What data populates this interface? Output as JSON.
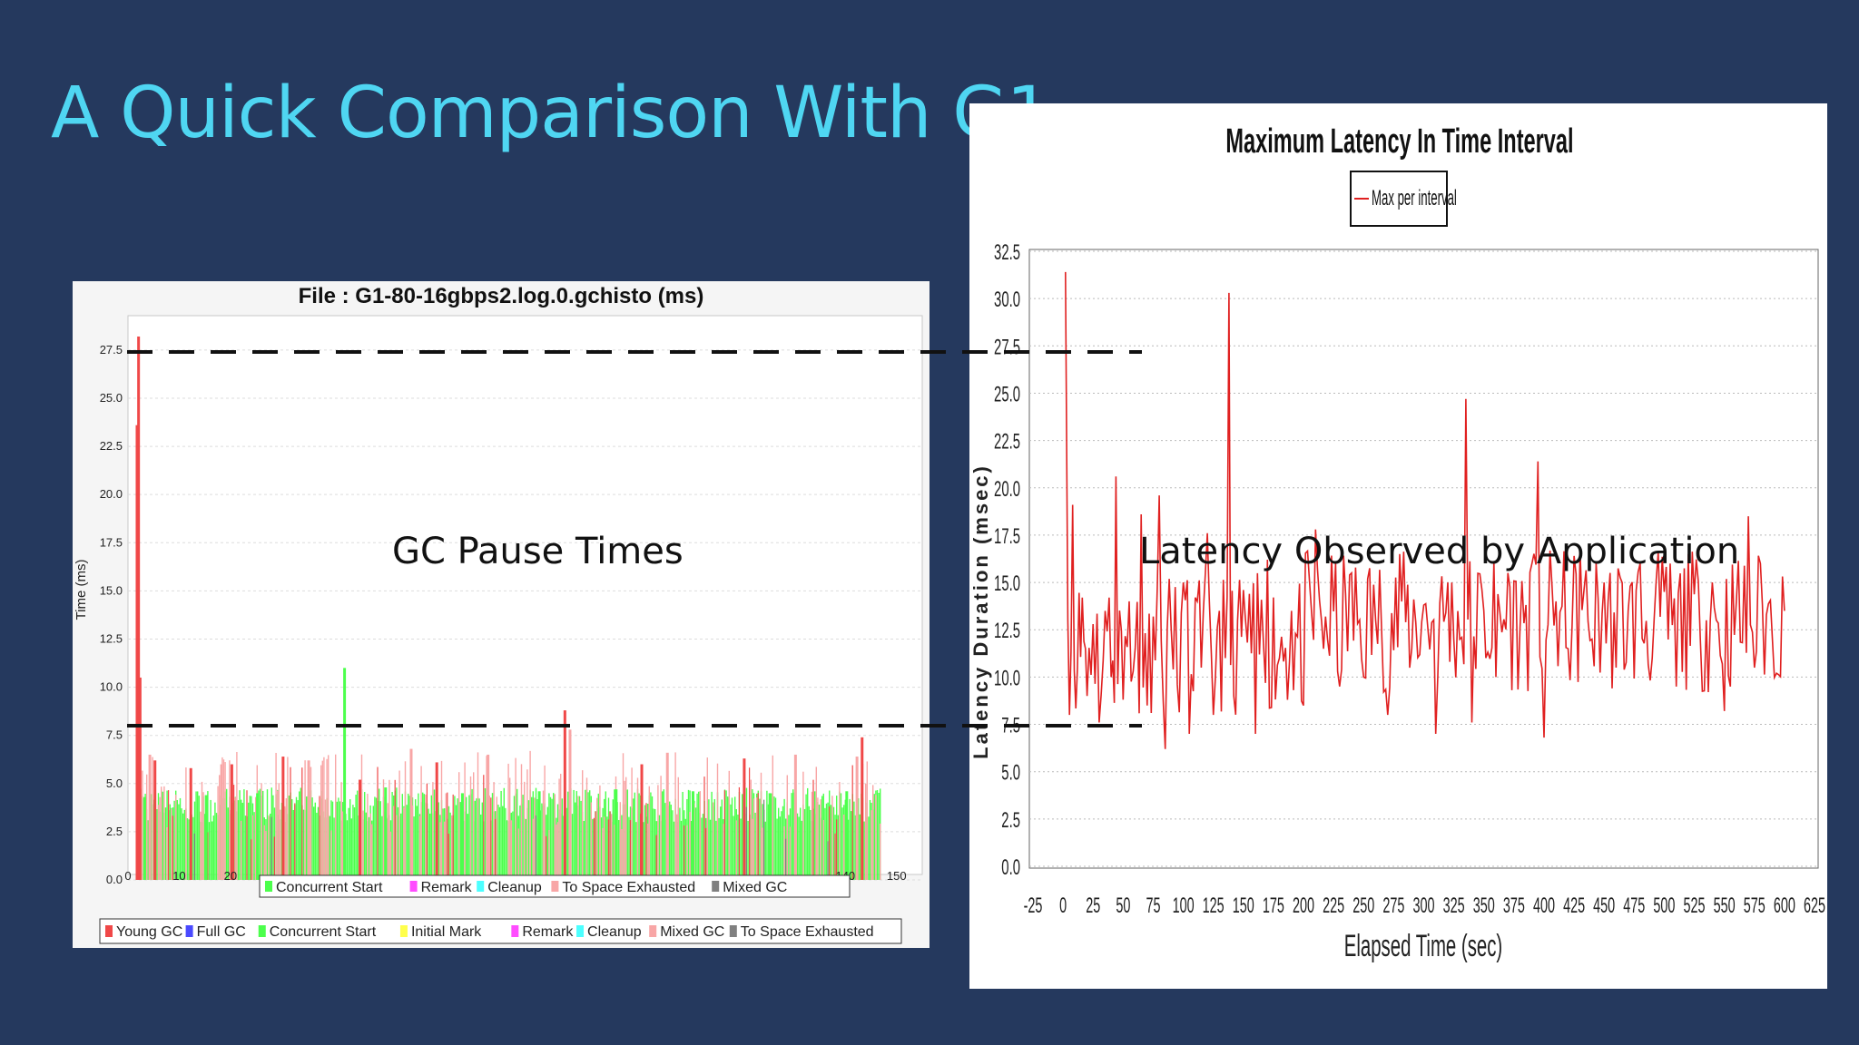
{
  "slide": {
    "title": "A Quick Comparison With G1",
    "gc_label": "GC Pause Times",
    "latency_label": "Latency Observed by Application"
  },
  "colors": {
    "background": "#25395e",
    "title": "#4fd6f2",
    "young_gc": "#f04848",
    "full_gc": "#4a4aff",
    "concurrent_start": "#4cff4c",
    "initial_mark": "#ffff4c",
    "remark": "#ff4cff",
    "cleanup": "#4cffff",
    "mixed_gc": "#f8a6a6",
    "to_space_exhausted": "#808080",
    "latency_line": "#e02020"
  },
  "chart_data": [
    {
      "type": "bar",
      "title": "File : G1-80-16gbps2.log.0.gchisto (ms)",
      "xlabel": "",
      "ylabel": "Time (ms)",
      "xlim": [
        0,
        155
      ],
      "ylim": [
        0,
        29
      ],
      "x_ticks": [
        "0",
        "10",
        "20",
        "140",
        "150"
      ],
      "y_ticks": [
        "0.0",
        "2.5",
        "5.0",
        "7.5",
        "10.0",
        "12.5",
        "15.0",
        "17.5",
        "20.0",
        "22.5",
        "25.0",
        "27.5"
      ],
      "grid": true,
      "inner_legend": [
        "Concurrent Start",
        "Remark",
        "Cleanup",
        "To Space Exhausted",
        "Mixed GC"
      ],
      "legend": [
        "Young GC",
        "Full GC",
        "Concurrent Start",
        "Initial Mark",
        "Remark",
        "Cleanup",
        "Mixed GC",
        "To Space Exhausted"
      ],
      "series": [
        {
          "name": "Young GC",
          "points": [
            [
              1.5,
              23.6
            ],
            [
              1.8,
              28.2
            ],
            [
              2.1,
              10.5
            ],
            [
              5,
              6.2
            ],
            [
              12,
              5.8
            ],
            [
              20,
              6.0
            ],
            [
              30,
              6.4
            ],
            [
              45,
              5.2
            ],
            [
              60,
              6.1
            ],
            [
              85,
              8.8
            ],
            [
              100,
              6.0
            ],
            [
              120,
              6.3
            ],
            [
              143,
              7.4
            ]
          ]
        },
        {
          "name": "Concurrent Start",
          "points": [
            [
              3,
              4.3
            ],
            [
              15,
              4.4
            ],
            [
              25,
              4.5
            ],
            [
              42,
              11.0
            ],
            [
              50,
              4.8
            ],
            [
              65,
              4.5
            ],
            [
              80,
              4.6
            ],
            [
              95,
              4.7
            ],
            [
              110,
              4.6
            ],
            [
              125,
              4.5
            ],
            [
              140,
              4.6
            ]
          ]
        },
        {
          "name": "Mixed GC",
          "points": [
            [
              4,
              6.5
            ],
            [
              18,
              6.0
            ],
            [
              35,
              6.2
            ],
            [
              55,
              6.8
            ],
            [
              70,
              6.5
            ],
            [
              86,
              7.8
            ],
            [
              105,
              6.6
            ],
            [
              130,
              6.5
            ],
            [
              142,
              6.4
            ]
          ]
        }
      ]
    },
    {
      "type": "line",
      "title": "Maximum Latency In Time Interval",
      "xlabel": "Elapsed Time (sec)",
      "ylabel": "Latency Duration (msec)",
      "xlim": [
        -25,
        625
      ],
      "ylim": [
        0,
        32.5
      ],
      "x_ticks": [
        "-25",
        "0",
        "25",
        "50",
        "75",
        "100",
        "125",
        "150",
        "175",
        "200",
        "225",
        "250",
        "275",
        "300",
        "325",
        "350",
        "375",
        "400",
        "425",
        "450",
        "475",
        "500",
        "525",
        "550",
        "575",
        "600",
        "625"
      ],
      "y_ticks": [
        "0.0",
        "2.5",
        "5.0",
        "7.5",
        "10.0",
        "12.5",
        "15.0",
        "17.5",
        "20.0",
        "22.5",
        "25.0",
        "27.5",
        "30.0",
        "32.5"
      ],
      "grid": true,
      "legend_position": "top-center",
      "series": [
        {
          "name": "Max per interval",
          "x": [
            2,
            4,
            8,
            12,
            16,
            20,
            25,
            30,
            35,
            40,
            44,
            50,
            55,
            60,
            65,
            70,
            75,
            80,
            85,
            90,
            95,
            100,
            105,
            110,
            115,
            120,
            125,
            130,
            135,
            138,
            142,
            150,
            160,
            170,
            180,
            190,
            200,
            210,
            220,
            230,
            240,
            250,
            260,
            270,
            280,
            290,
            300,
            310,
            320,
            330,
            335,
            340,
            350,
            360,
            370,
            380,
            390,
            395,
            400,
            410,
            420,
            430,
            440,
            450,
            460,
            470,
            480,
            490,
            500,
            510,
            520,
            530,
            540,
            550,
            560,
            570,
            575,
            580,
            590,
            600
          ],
          "y": [
            31.4,
            13.0,
            19.1,
            10.5,
            14.2,
            9.0,
            12.8,
            7.6,
            13.5,
            10.0,
            20.6,
            8.8,
            14.0,
            11.5,
            18.6,
            8.5,
            13.2,
            19.6,
            6.2,
            12.5,
            9.6,
            15.0,
            7.0,
            14.2,
            10.5,
            17.6,
            8.0,
            13.5,
            11.0,
            30.3,
            9.0,
            14.6,
            7.0,
            16.2,
            11.0,
            13.5,
            8.5,
            17.8,
            12.0,
            9.5,
            15.5,
            10.0,
            13.0,
            8.0,
            16.5,
            11.5,
            13.8,
            7.0,
            15.0,
            12.0,
            24.7,
            7.6,
            13.5,
            10.0,
            15.5,
            12.5,
            16.0,
            21.4,
            6.8,
            14.0,
            11.5,
            16.8,
            12.0,
            15.0,
            10.5,
            13.5,
            16.0,
            11.0,
            14.5,
            9.5,
            16.5,
            12.0,
            15.0,
            8.2,
            14.0,
            18.5,
            10.5,
            16.0,
            12.0,
            13.5
          ]
        }
      ]
    }
  ]
}
